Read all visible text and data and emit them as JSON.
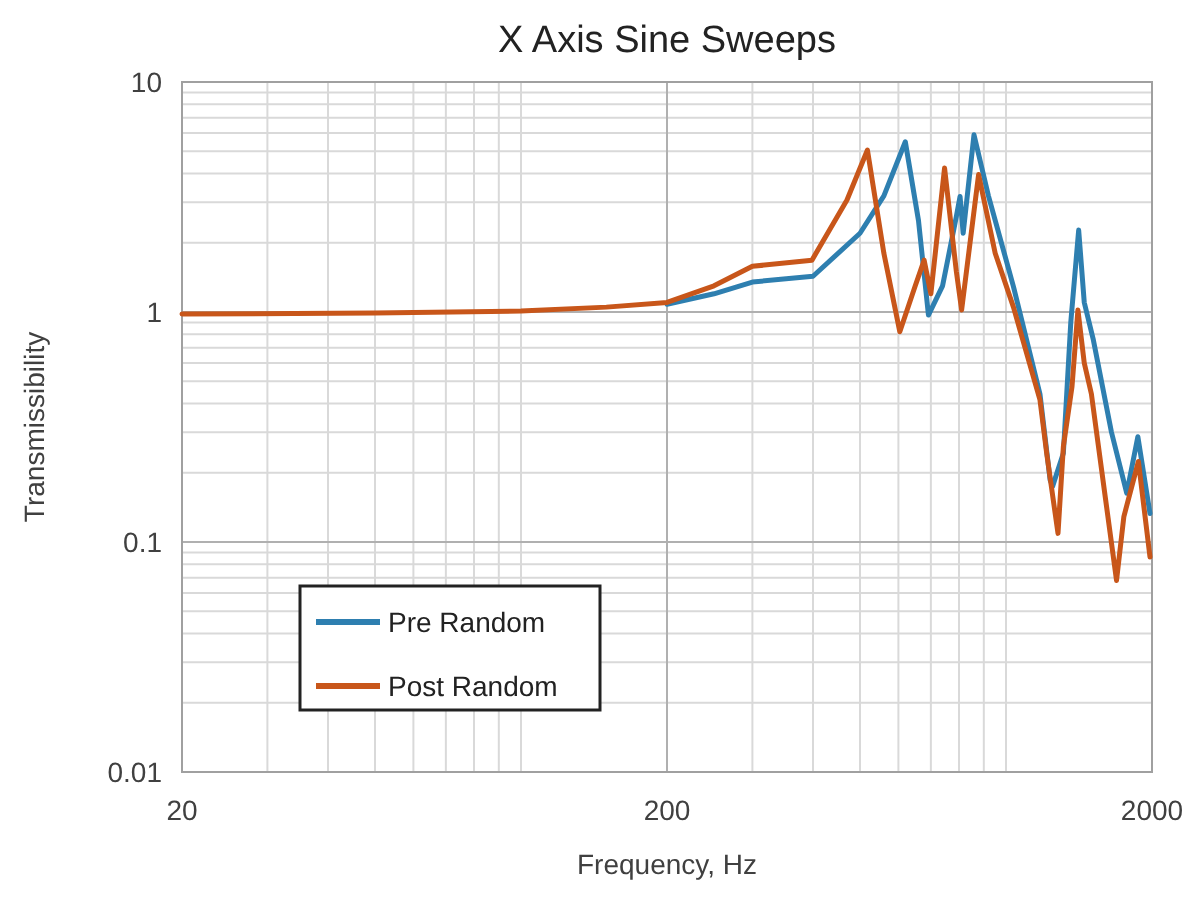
{
  "chart_data": {
    "type": "line",
    "title": "X Axis Sine Sweeps",
    "xlabel": "Frequency, Hz",
    "ylabel": "Transmissibility",
    "log": "xy",
    "xlim": [
      20,
      2000
    ],
    "ylim": [
      0.01,
      10
    ],
    "xticks": [
      20,
      200,
      2000
    ],
    "yticks": [
      0.01,
      0.1,
      1,
      10
    ],
    "grid": true,
    "legend": "bottom left",
    "marker": "none",
    "line_style": "solid",
    "series": [
      {
        "name": "Pre Random",
        "color": "#2e7fb0",
        "x": [
          200,
          250,
          300,
          400,
          500,
          560,
          620,
          660,
          692,
          740,
          790,
          804,
          816,
          859,
          920,
          1036,
          1175,
          1233,
          1248,
          1313,
          1360,
          1412,
          1450,
          1514,
          1650,
          1774,
          1870,
          1981
        ],
        "values": [
          1.08,
          1.2,
          1.35,
          1.43,
          2.2,
          3.2,
          5.5,
          2.5,
          0.97,
          1.3,
          2.6,
          3.18,
          2.2,
          5.9,
          3.2,
          1.29,
          0.44,
          0.186,
          0.175,
          0.243,
          0.9,
          2.27,
          1.1,
          0.756,
          0.3,
          0.163,
          0.287,
          0.133
        ]
      },
      {
        "name": "Post Random",
        "color": "#c8561a",
        "x": [
          20,
          50,
          100,
          150,
          200,
          250,
          300,
          398,
          470,
          518,
          560,
          604,
          650,
          678,
          700,
          747,
          790,
          810,
          878,
          950,
          1036,
          1175,
          1213,
          1280,
          1313,
          1368,
          1407,
          1450,
          1500,
          1600,
          1690,
          1750,
          1875,
          1981
        ],
        "values": [
          0.98,
          0.99,
          1.01,
          1.05,
          1.1,
          1.3,
          1.58,
          1.68,
          3.07,
          5.06,
          1.8,
          0.82,
          1.3,
          1.68,
          1.2,
          4.23,
          1.5,
          1.02,
          3.96,
          1.8,
          1.05,
          0.415,
          0.243,
          0.109,
          0.26,
          0.474,
          1.02,
          0.6,
          0.44,
          0.16,
          0.068,
          0.129,
          0.224,
          0.086
        ]
      }
    ]
  }
}
